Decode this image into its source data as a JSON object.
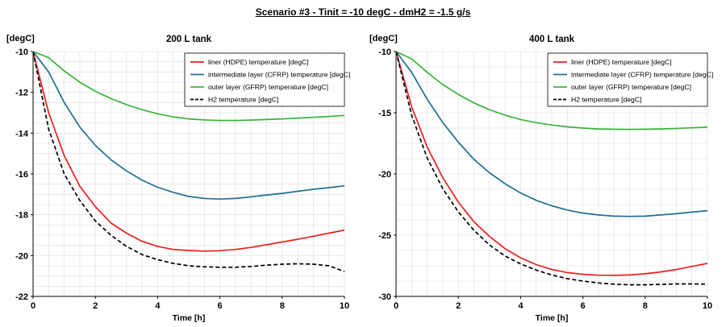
{
  "figure_title": "Scenario #3 - Tinit = -10 degC - dmH2 = -1.5 g/s",
  "colors": {
    "liner": "#e8201e",
    "intermediate": "#1e6f92",
    "outer": "#3ab43a",
    "h2": "#000000",
    "grid": "#dcdcdc"
  },
  "chart_data": [
    {
      "type": "line",
      "title": "200 L tank",
      "xlabel": "Time [h]",
      "ylabel": "[degC]",
      "xlim": [
        0,
        10
      ],
      "ylim": [
        -22,
        -10
      ],
      "xticks": [
        0,
        2,
        4,
        6,
        8,
        10
      ],
      "yticks": [
        -10,
        -12,
        -14,
        -16,
        -18,
        -20,
        -22
      ],
      "grid": true,
      "legend_position": "top-right",
      "series": [
        {
          "name": "liner (HDPE) temperature [degC]",
          "color_key": "liner",
          "dash": false,
          "x": [
            0,
            0.5,
            1,
            1.5,
            2,
            2.5,
            3,
            3.5,
            4,
            4.5,
            5,
            5.5,
            6,
            6.5,
            7,
            7.5,
            8,
            8.5,
            9,
            9.5,
            10
          ],
          "y": [
            -10,
            -13.0,
            -15.1,
            -16.6,
            -17.6,
            -18.4,
            -18.9,
            -19.3,
            -19.55,
            -19.7,
            -19.75,
            -19.78,
            -19.76,
            -19.7,
            -19.6,
            -19.47,
            -19.33,
            -19.2,
            -19.05,
            -18.9,
            -18.75
          ]
        },
        {
          "name": "intermediate layer (CFRP) temperature [degC]",
          "color_key": "intermediate",
          "dash": false,
          "x": [
            0,
            0.5,
            1,
            1.5,
            2,
            2.5,
            3,
            3.5,
            4,
            4.5,
            5,
            5.5,
            6,
            6.5,
            7,
            7.5,
            8,
            8.5,
            9,
            9.5,
            10
          ],
          "y": [
            -10,
            -11.0,
            -12.5,
            -13.7,
            -14.6,
            -15.3,
            -15.85,
            -16.3,
            -16.65,
            -16.9,
            -17.1,
            -17.2,
            -17.23,
            -17.2,
            -17.12,
            -17.03,
            -16.95,
            -16.85,
            -16.75,
            -16.67,
            -16.58
          ]
        },
        {
          "name": "outer layer (GFRP) temperature [degC]",
          "color_key": "outer",
          "dash": false,
          "x": [
            0,
            0.5,
            1,
            1.5,
            2,
            2.5,
            3,
            3.5,
            4,
            4.5,
            5,
            5.5,
            6,
            6.5,
            7,
            7.5,
            8,
            8.5,
            9,
            9.5,
            10
          ],
          "y": [
            -10,
            -10.3,
            -10.95,
            -11.5,
            -11.95,
            -12.3,
            -12.6,
            -12.85,
            -13.05,
            -13.2,
            -13.3,
            -13.35,
            -13.38,
            -13.38,
            -13.36,
            -13.33,
            -13.3,
            -13.26,
            -13.22,
            -13.18,
            -13.13
          ]
        },
        {
          "name": "H2 temperature [degC]",
          "color_key": "h2",
          "dash": true,
          "x": [
            0,
            0.5,
            1,
            1.5,
            2,
            2.5,
            3,
            3.5,
            4,
            4.5,
            5,
            5.5,
            6,
            6.5,
            7,
            7.5,
            8,
            8.5,
            9,
            9.5,
            10
          ],
          "y": [
            -10,
            -13.8,
            -16.0,
            -17.3,
            -18.3,
            -19.0,
            -19.55,
            -19.95,
            -20.2,
            -20.38,
            -20.5,
            -20.55,
            -20.57,
            -20.57,
            -20.53,
            -20.47,
            -20.42,
            -20.4,
            -20.42,
            -20.5,
            -20.78
          ]
        }
      ]
    },
    {
      "type": "line",
      "title": "400 L tank",
      "xlabel": "Time [h]",
      "ylabel": "[degC]",
      "xlim": [
        0,
        10
      ],
      "ylim": [
        -30,
        -10
      ],
      "xticks": [
        0,
        2,
        4,
        6,
        8,
        10
      ],
      "yticks": [
        -10,
        -15,
        -20,
        -25,
        -30
      ],
      "grid": true,
      "legend_position": "top-right",
      "series": [
        {
          "name": "liner (HDPE) temperature [degC]",
          "color_key": "liner",
          "dash": false,
          "x": [
            0,
            0.5,
            1,
            1.5,
            2,
            2.5,
            3,
            3.5,
            4,
            4.5,
            5,
            5.5,
            6,
            6.5,
            7,
            7.5,
            8,
            8.5,
            9,
            9.5,
            10
          ],
          "y": [
            -10,
            -14.5,
            -17.8,
            -20.3,
            -22.3,
            -23.9,
            -25.1,
            -26.1,
            -26.85,
            -27.4,
            -27.8,
            -28.05,
            -28.2,
            -28.27,
            -28.28,
            -28.25,
            -28.15,
            -28.0,
            -27.8,
            -27.55,
            -27.3
          ]
        },
        {
          "name": "intermediate layer (CFRP) temperature [degC]",
          "color_key": "intermediate",
          "dash": false,
          "x": [
            0,
            0.5,
            1,
            1.5,
            2,
            2.5,
            3,
            3.5,
            4,
            4.5,
            5,
            5.5,
            6,
            6.5,
            7,
            7.5,
            8,
            8.5,
            9,
            9.5,
            10
          ],
          "y": [
            -10,
            -11.7,
            -13.9,
            -15.8,
            -17.4,
            -18.8,
            -19.9,
            -20.8,
            -21.55,
            -22.15,
            -22.6,
            -22.95,
            -23.2,
            -23.35,
            -23.45,
            -23.47,
            -23.45,
            -23.35,
            -23.25,
            -23.12,
            -23.0
          ]
        },
        {
          "name": "outer layer (GFRP) temperature [degC]",
          "color_key": "outer",
          "dash": false,
          "x": [
            0,
            0.5,
            1,
            1.5,
            2,
            2.5,
            3,
            3.5,
            4,
            4.5,
            5,
            5.5,
            6,
            6.5,
            7,
            7.5,
            8,
            8.5,
            9,
            9.5,
            10
          ],
          "y": [
            -10,
            -10.6,
            -11.7,
            -12.7,
            -13.5,
            -14.2,
            -14.75,
            -15.2,
            -15.55,
            -15.8,
            -16.0,
            -16.15,
            -16.25,
            -16.32,
            -16.35,
            -16.36,
            -16.35,
            -16.32,
            -16.28,
            -16.23,
            -16.18
          ]
        },
        {
          "name": "H2 temperature [degC]",
          "color_key": "h2",
          "dash": true,
          "x": [
            0,
            0.5,
            1,
            1.5,
            2,
            2.5,
            3,
            3.5,
            4,
            4.5,
            5,
            5.5,
            6,
            6.5,
            7,
            7.5,
            8,
            8.5,
            9,
            9.5,
            10
          ],
          "y": [
            -10,
            -15.2,
            -18.7,
            -21.2,
            -23.1,
            -24.6,
            -25.8,
            -26.7,
            -27.35,
            -27.85,
            -28.25,
            -28.55,
            -28.75,
            -28.9,
            -29.0,
            -29.05,
            -29.05,
            -29.02,
            -28.98,
            -28.98,
            -29.0
          ]
        }
      ]
    }
  ]
}
